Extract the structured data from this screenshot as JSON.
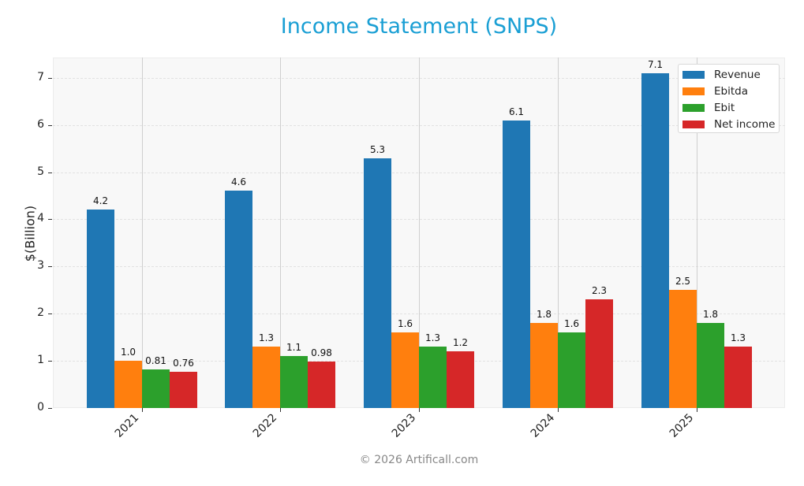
{
  "title": "Income Statement (SNPS)",
  "footer": "© 2026 Artificall.com",
  "colors": {
    "title": "#1a9fd4",
    "Revenue": "#1f77b4",
    "Ebitda": "#ff7f0e",
    "Ebit": "#2ca02c",
    "Net income": "#d62728"
  },
  "legend": [
    {
      "label": "Revenue",
      "color": "#1f77b4"
    },
    {
      "label": "Ebitda",
      "color": "#ff7f0e"
    },
    {
      "label": "Ebit",
      "color": "#2ca02c"
    },
    {
      "label": "Net income",
      "color": "#d62728"
    }
  ],
  "chart_data": {
    "type": "bar",
    "title": "Income Statement (SNPS)",
    "xlabel": "",
    "ylabel": "$(Billion)",
    "categories": [
      "2021",
      "2022",
      "2023",
      "2024",
      "2025"
    ],
    "series": [
      {
        "name": "Revenue",
        "values": [
          4.2,
          4.6,
          5.3,
          6.1,
          7.1
        ],
        "labels": [
          "4.2",
          "4.6",
          "5.3",
          "6.1",
          "7.1"
        ]
      },
      {
        "name": "Ebitda",
        "values": [
          1.0,
          1.3,
          1.6,
          1.8,
          2.5
        ],
        "labels": [
          "1.0",
          "1.3",
          "1.6",
          "1.8",
          "2.5"
        ]
      },
      {
        "name": "Ebit",
        "values": [
          0.81,
          1.1,
          1.3,
          1.6,
          1.8
        ],
        "labels": [
          "0.81",
          "1.1",
          "1.3",
          "1.6",
          "1.8"
        ]
      },
      {
        "name": "Net income",
        "values": [
          0.76,
          0.98,
          1.2,
          2.3,
          1.3
        ],
        "labels": [
          "0.76",
          "0.98",
          "1.2",
          "2.3",
          "1.3"
        ]
      }
    ],
    "yticks": [
      "0",
      "1",
      "2",
      "3",
      "4",
      "5",
      "6",
      "7"
    ],
    "ylim": [
      0,
      7.4
    ],
    "grid": true,
    "legend_position": "upper right"
  }
}
